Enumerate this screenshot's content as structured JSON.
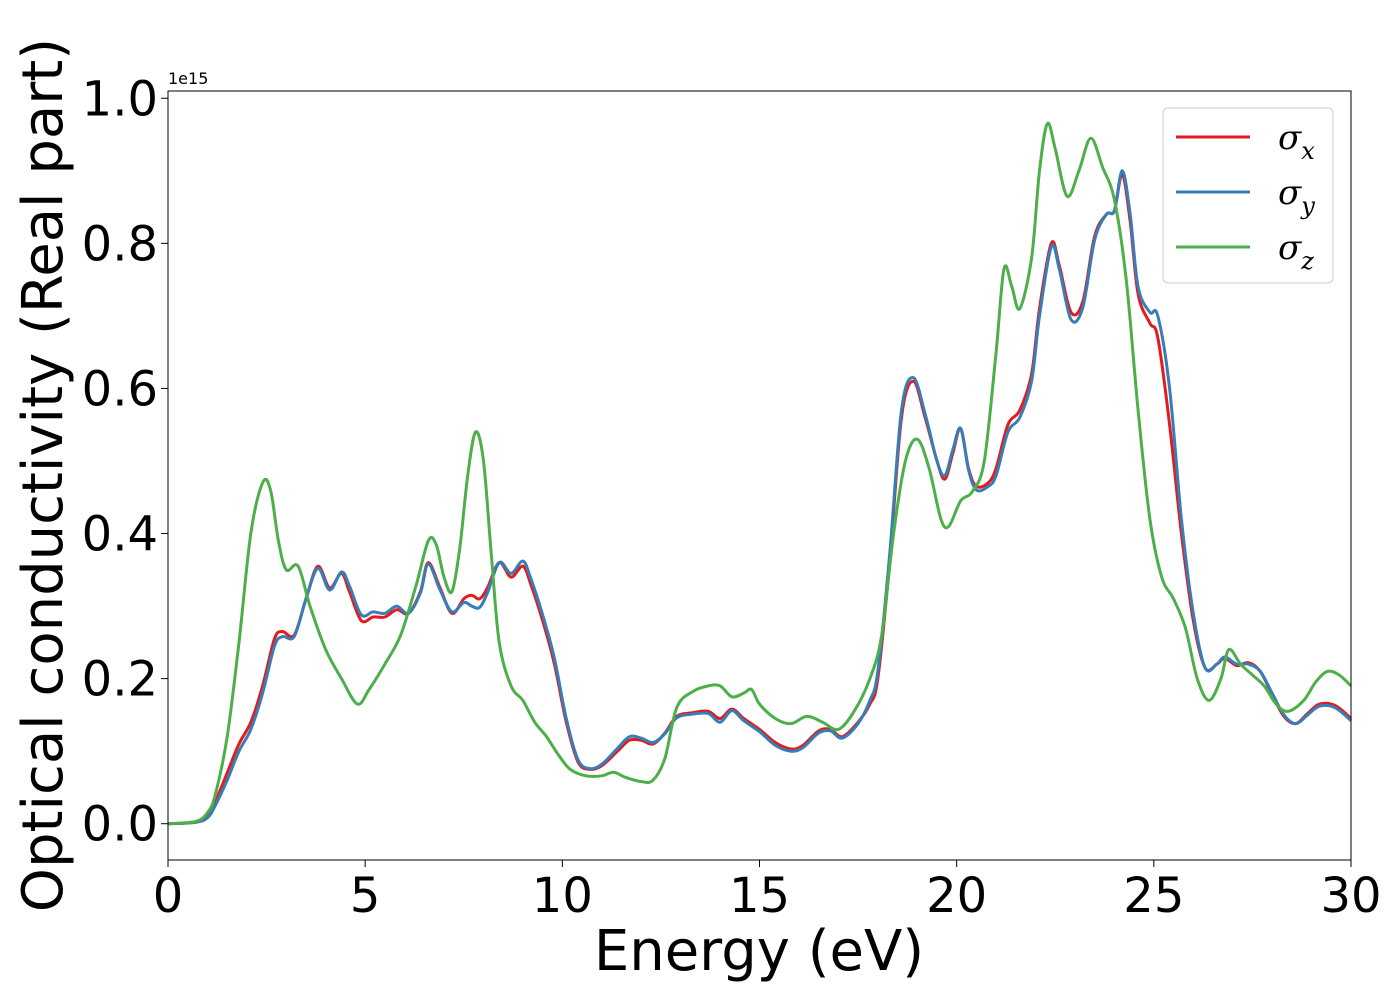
{
  "chart_data": {
    "type": "line",
    "xlabel": "Energy (eV)",
    "ylabel": "Optical conductivity (Real part)",
    "y_offset_text": "1e15",
    "xlim": [
      0,
      30
    ],
    "ylim": [
      -0.05,
      1.01
    ],
    "xticks": [
      0,
      5,
      10,
      15,
      20,
      25,
      30
    ],
    "xtick_labels": [
      "0",
      "5",
      "10",
      "15",
      "20",
      "25",
      "30"
    ],
    "yticks": [
      0.0,
      0.2,
      0.4,
      0.6,
      0.8,
      1.0
    ],
    "ytick_labels": [
      "0.0",
      "0.2",
      "0.4",
      "0.6",
      "0.8",
      "1.0"
    ],
    "grid": false,
    "legend_position": "top-right",
    "series": [
      {
        "name": "σx",
        "legend_base": "σ",
        "legend_sub": "x",
        "color": "#e41a1c",
        "points": [
          [
            0,
            0.0
          ],
          [
            0.7,
            0.002
          ],
          [
            1.0,
            0.01
          ],
          [
            1.2,
            0.03
          ],
          [
            1.5,
            0.07
          ],
          [
            1.8,
            0.11
          ],
          [
            2.1,
            0.14
          ],
          [
            2.4,
            0.19
          ],
          [
            2.7,
            0.255
          ],
          [
            2.9,
            0.265
          ],
          [
            3.2,
            0.26
          ],
          [
            3.5,
            0.31
          ],
          [
            3.8,
            0.355
          ],
          [
            4.1,
            0.325
          ],
          [
            4.4,
            0.345
          ],
          [
            4.6,
            0.32
          ],
          [
            4.9,
            0.28
          ],
          [
            5.2,
            0.285
          ],
          [
            5.5,
            0.285
          ],
          [
            5.8,
            0.295
          ],
          [
            6.1,
            0.29
          ],
          [
            6.4,
            0.32
          ],
          [
            6.6,
            0.36
          ],
          [
            6.9,
            0.325
          ],
          [
            7.2,
            0.29
          ],
          [
            7.5,
            0.31
          ],
          [
            7.7,
            0.315
          ],
          [
            7.9,
            0.31
          ],
          [
            8.1,
            0.325
          ],
          [
            8.4,
            0.36
          ],
          [
            8.7,
            0.34
          ],
          [
            9.0,
            0.355
          ],
          [
            9.2,
            0.33
          ],
          [
            9.5,
            0.28
          ],
          [
            9.8,
            0.22
          ],
          [
            10.1,
            0.14
          ],
          [
            10.4,
            0.085
          ],
          [
            10.7,
            0.075
          ],
          [
            11.0,
            0.08
          ],
          [
            11.4,
            0.1
          ],
          [
            11.7,
            0.115
          ],
          [
            12.0,
            0.115
          ],
          [
            12.3,
            0.11
          ],
          [
            12.6,
            0.125
          ],
          [
            12.9,
            0.148
          ],
          [
            13.3,
            0.153
          ],
          [
            13.7,
            0.155
          ],
          [
            14.0,
            0.145
          ],
          [
            14.3,
            0.158
          ],
          [
            14.6,
            0.145
          ],
          [
            15.0,
            0.13
          ],
          [
            15.4,
            0.112
          ],
          [
            15.8,
            0.103
          ],
          [
            16.1,
            0.108
          ],
          [
            16.5,
            0.128
          ],
          [
            16.8,
            0.13
          ],
          [
            17.1,
            0.12
          ],
          [
            17.5,
            0.14
          ],
          [
            17.8,
            0.165
          ],
          [
            18.0,
            0.2
          ],
          [
            18.3,
            0.36
          ],
          [
            18.6,
            0.56
          ],
          [
            18.9,
            0.61
          ],
          [
            19.2,
            0.56
          ],
          [
            19.5,
            0.5
          ],
          [
            19.7,
            0.475
          ],
          [
            19.9,
            0.51
          ],
          [
            20.1,
            0.545
          ],
          [
            20.3,
            0.49
          ],
          [
            20.5,
            0.465
          ],
          [
            20.8,
            0.47
          ],
          [
            21.0,
            0.49
          ],
          [
            21.3,
            0.55
          ],
          [
            21.6,
            0.57
          ],
          [
            21.9,
            0.62
          ],
          [
            22.1,
            0.71
          ],
          [
            22.4,
            0.8
          ],
          [
            22.6,
            0.77
          ],
          [
            22.9,
            0.705
          ],
          [
            23.2,
            0.72
          ],
          [
            23.5,
            0.81
          ],
          [
            23.8,
            0.84
          ],
          [
            24.0,
            0.845
          ],
          [
            24.2,
            0.895
          ],
          [
            24.4,
            0.83
          ],
          [
            24.6,
            0.73
          ],
          [
            24.9,
            0.69
          ],
          [
            25.1,
            0.67
          ],
          [
            25.4,
            0.55
          ],
          [
            25.7,
            0.4
          ],
          [
            26.0,
            0.28
          ],
          [
            26.3,
            0.215
          ],
          [
            26.6,
            0.22
          ],
          [
            26.8,
            0.228
          ],
          [
            27.1,
            0.218
          ],
          [
            27.4,
            0.222
          ],
          [
            27.7,
            0.21
          ],
          [
            28.0,
            0.178
          ],
          [
            28.3,
            0.148
          ],
          [
            28.6,
            0.138
          ],
          [
            28.9,
            0.152
          ],
          [
            29.2,
            0.165
          ],
          [
            29.6,
            0.163
          ],
          [
            30.0,
            0.145
          ]
        ]
      },
      {
        "name": "σy",
        "legend_base": "σ",
        "legend_sub": "y",
        "color": "#377eb8",
        "points": [
          [
            0,
            0.0
          ],
          [
            0.7,
            0.002
          ],
          [
            1.0,
            0.008
          ],
          [
            1.2,
            0.025
          ],
          [
            1.5,
            0.06
          ],
          [
            1.8,
            0.1
          ],
          [
            2.1,
            0.13
          ],
          [
            2.4,
            0.18
          ],
          [
            2.7,
            0.245
          ],
          [
            2.9,
            0.258
          ],
          [
            3.2,
            0.258
          ],
          [
            3.5,
            0.31
          ],
          [
            3.8,
            0.352
          ],
          [
            4.1,
            0.322
          ],
          [
            4.4,
            0.347
          ],
          [
            4.6,
            0.328
          ],
          [
            4.9,
            0.288
          ],
          [
            5.2,
            0.292
          ],
          [
            5.5,
            0.29
          ],
          [
            5.8,
            0.3
          ],
          [
            6.1,
            0.29
          ],
          [
            6.4,
            0.318
          ],
          [
            6.6,
            0.358
          ],
          [
            6.9,
            0.322
          ],
          [
            7.2,
            0.292
          ],
          [
            7.5,
            0.305
          ],
          [
            7.7,
            0.3
          ],
          [
            7.9,
            0.298
          ],
          [
            8.1,
            0.318
          ],
          [
            8.4,
            0.36
          ],
          [
            8.7,
            0.345
          ],
          [
            9.0,
            0.362
          ],
          [
            9.2,
            0.338
          ],
          [
            9.5,
            0.288
          ],
          [
            9.8,
            0.228
          ],
          [
            10.1,
            0.145
          ],
          [
            10.4,
            0.088
          ],
          [
            10.7,
            0.076
          ],
          [
            11.0,
            0.082
          ],
          [
            11.4,
            0.104
          ],
          [
            11.7,
            0.12
          ],
          [
            12.0,
            0.118
          ],
          [
            12.3,
            0.112
          ],
          [
            12.6,
            0.124
          ],
          [
            12.9,
            0.146
          ],
          [
            13.3,
            0.151
          ],
          [
            13.7,
            0.152
          ],
          [
            14.0,
            0.14
          ],
          [
            14.3,
            0.156
          ],
          [
            14.6,
            0.142
          ],
          [
            15.0,
            0.127
          ],
          [
            15.4,
            0.108
          ],
          [
            15.8,
            0.1
          ],
          [
            16.1,
            0.105
          ],
          [
            16.5,
            0.125
          ],
          [
            16.8,
            0.128
          ],
          [
            17.1,
            0.118
          ],
          [
            17.5,
            0.138
          ],
          [
            17.8,
            0.17
          ],
          [
            18.0,
            0.21
          ],
          [
            18.3,
            0.37
          ],
          [
            18.6,
            0.57
          ],
          [
            18.9,
            0.615
          ],
          [
            19.2,
            0.565
          ],
          [
            19.5,
            0.5
          ],
          [
            19.7,
            0.48
          ],
          [
            19.9,
            0.515
          ],
          [
            20.1,
            0.545
          ],
          [
            20.3,
            0.488
          ],
          [
            20.5,
            0.46
          ],
          [
            20.8,
            0.465
          ],
          [
            21.0,
            0.48
          ],
          [
            21.3,
            0.54
          ],
          [
            21.6,
            0.56
          ],
          [
            21.9,
            0.61
          ],
          [
            22.1,
            0.7
          ],
          [
            22.4,
            0.795
          ],
          [
            22.6,
            0.765
          ],
          [
            22.9,
            0.695
          ],
          [
            23.2,
            0.712
          ],
          [
            23.5,
            0.805
          ],
          [
            23.8,
            0.84
          ],
          [
            24.0,
            0.845
          ],
          [
            24.2,
            0.9
          ],
          [
            24.4,
            0.84
          ],
          [
            24.6,
            0.74
          ],
          [
            24.9,
            0.705
          ],
          [
            25.1,
            0.7
          ],
          [
            25.4,
            0.6
          ],
          [
            25.7,
            0.42
          ],
          [
            26.0,
            0.29
          ],
          [
            26.3,
            0.215
          ],
          [
            26.6,
            0.22
          ],
          [
            26.8,
            0.23
          ],
          [
            27.1,
            0.22
          ],
          [
            27.4,
            0.22
          ],
          [
            27.7,
            0.21
          ],
          [
            28.0,
            0.18
          ],
          [
            28.3,
            0.15
          ],
          [
            28.6,
            0.138
          ],
          [
            28.9,
            0.15
          ],
          [
            29.2,
            0.162
          ],
          [
            29.6,
            0.16
          ],
          [
            30.0,
            0.142
          ]
        ]
      },
      {
        "name": "σz",
        "legend_base": "σ",
        "legend_sub": "z",
        "color": "#4daf4a",
        "points": [
          [
            0,
            0.0
          ],
          [
            0.7,
            0.003
          ],
          [
            1.0,
            0.015
          ],
          [
            1.2,
            0.04
          ],
          [
            1.5,
            0.12
          ],
          [
            1.8,
            0.25
          ],
          [
            2.1,
            0.4
          ],
          [
            2.4,
            0.47
          ],
          [
            2.6,
            0.46
          ],
          [
            2.8,
            0.39
          ],
          [
            3.0,
            0.35
          ],
          [
            3.3,
            0.355
          ],
          [
            3.6,
            0.3
          ],
          [
            4.0,
            0.24
          ],
          [
            4.4,
            0.2
          ],
          [
            4.8,
            0.165
          ],
          [
            5.1,
            0.185
          ],
          [
            5.5,
            0.22
          ],
          [
            5.9,
            0.26
          ],
          [
            6.3,
            0.33
          ],
          [
            6.6,
            0.39
          ],
          [
            6.8,
            0.385
          ],
          [
            7.0,
            0.34
          ],
          [
            7.2,
            0.32
          ],
          [
            7.4,
            0.38
          ],
          [
            7.6,
            0.48
          ],
          [
            7.8,
            0.54
          ],
          [
            8.0,
            0.5
          ],
          [
            8.2,
            0.37
          ],
          [
            8.4,
            0.25
          ],
          [
            8.7,
            0.19
          ],
          [
            9.0,
            0.17
          ],
          [
            9.3,
            0.14
          ],
          [
            9.6,
            0.12
          ],
          [
            9.9,
            0.095
          ],
          [
            10.2,
            0.075
          ],
          [
            10.6,
            0.066
          ],
          [
            11.0,
            0.066
          ],
          [
            11.3,
            0.071
          ],
          [
            11.6,
            0.064
          ],
          [
            12.0,
            0.058
          ],
          [
            12.3,
            0.06
          ],
          [
            12.6,
            0.09
          ],
          [
            12.9,
            0.16
          ],
          [
            13.3,
            0.182
          ],
          [
            13.7,
            0.19
          ],
          [
            14.0,
            0.19
          ],
          [
            14.3,
            0.175
          ],
          [
            14.6,
            0.18
          ],
          [
            14.8,
            0.185
          ],
          [
            15.0,
            0.165
          ],
          [
            15.4,
            0.145
          ],
          [
            15.8,
            0.138
          ],
          [
            16.2,
            0.148
          ],
          [
            16.6,
            0.14
          ],
          [
            17.0,
            0.13
          ],
          [
            17.4,
            0.155
          ],
          [
            17.8,
            0.2
          ],
          [
            18.1,
            0.26
          ],
          [
            18.4,
            0.4
          ],
          [
            18.7,
            0.5
          ],
          [
            19.0,
            0.53
          ],
          [
            19.3,
            0.49
          ],
          [
            19.6,
            0.42
          ],
          [
            19.8,
            0.41
          ],
          [
            20.1,
            0.445
          ],
          [
            20.4,
            0.458
          ],
          [
            20.7,
            0.5
          ],
          [
            21.0,
            0.65
          ],
          [
            21.2,
            0.765
          ],
          [
            21.4,
            0.74
          ],
          [
            21.6,
            0.71
          ],
          [
            21.9,
            0.78
          ],
          [
            22.1,
            0.9
          ],
          [
            22.3,
            0.965
          ],
          [
            22.5,
            0.93
          ],
          [
            22.8,
            0.865
          ],
          [
            23.1,
            0.9
          ],
          [
            23.4,
            0.945
          ],
          [
            23.7,
            0.905
          ],
          [
            24.0,
            0.86
          ],
          [
            24.3,
            0.75
          ],
          [
            24.6,
            0.57
          ],
          [
            24.9,
            0.42
          ],
          [
            25.2,
            0.34
          ],
          [
            25.5,
            0.31
          ],
          [
            25.8,
            0.27
          ],
          [
            26.1,
            0.2
          ],
          [
            26.4,
            0.17
          ],
          [
            26.7,
            0.2
          ],
          [
            26.9,
            0.24
          ],
          [
            27.2,
            0.22
          ],
          [
            27.5,
            0.205
          ],
          [
            27.8,
            0.19
          ],
          [
            28.1,
            0.165
          ],
          [
            28.4,
            0.155
          ],
          [
            28.8,
            0.17
          ],
          [
            29.1,
            0.195
          ],
          [
            29.4,
            0.21
          ],
          [
            29.7,
            0.205
          ],
          [
            30.0,
            0.19
          ]
        ]
      }
    ]
  }
}
